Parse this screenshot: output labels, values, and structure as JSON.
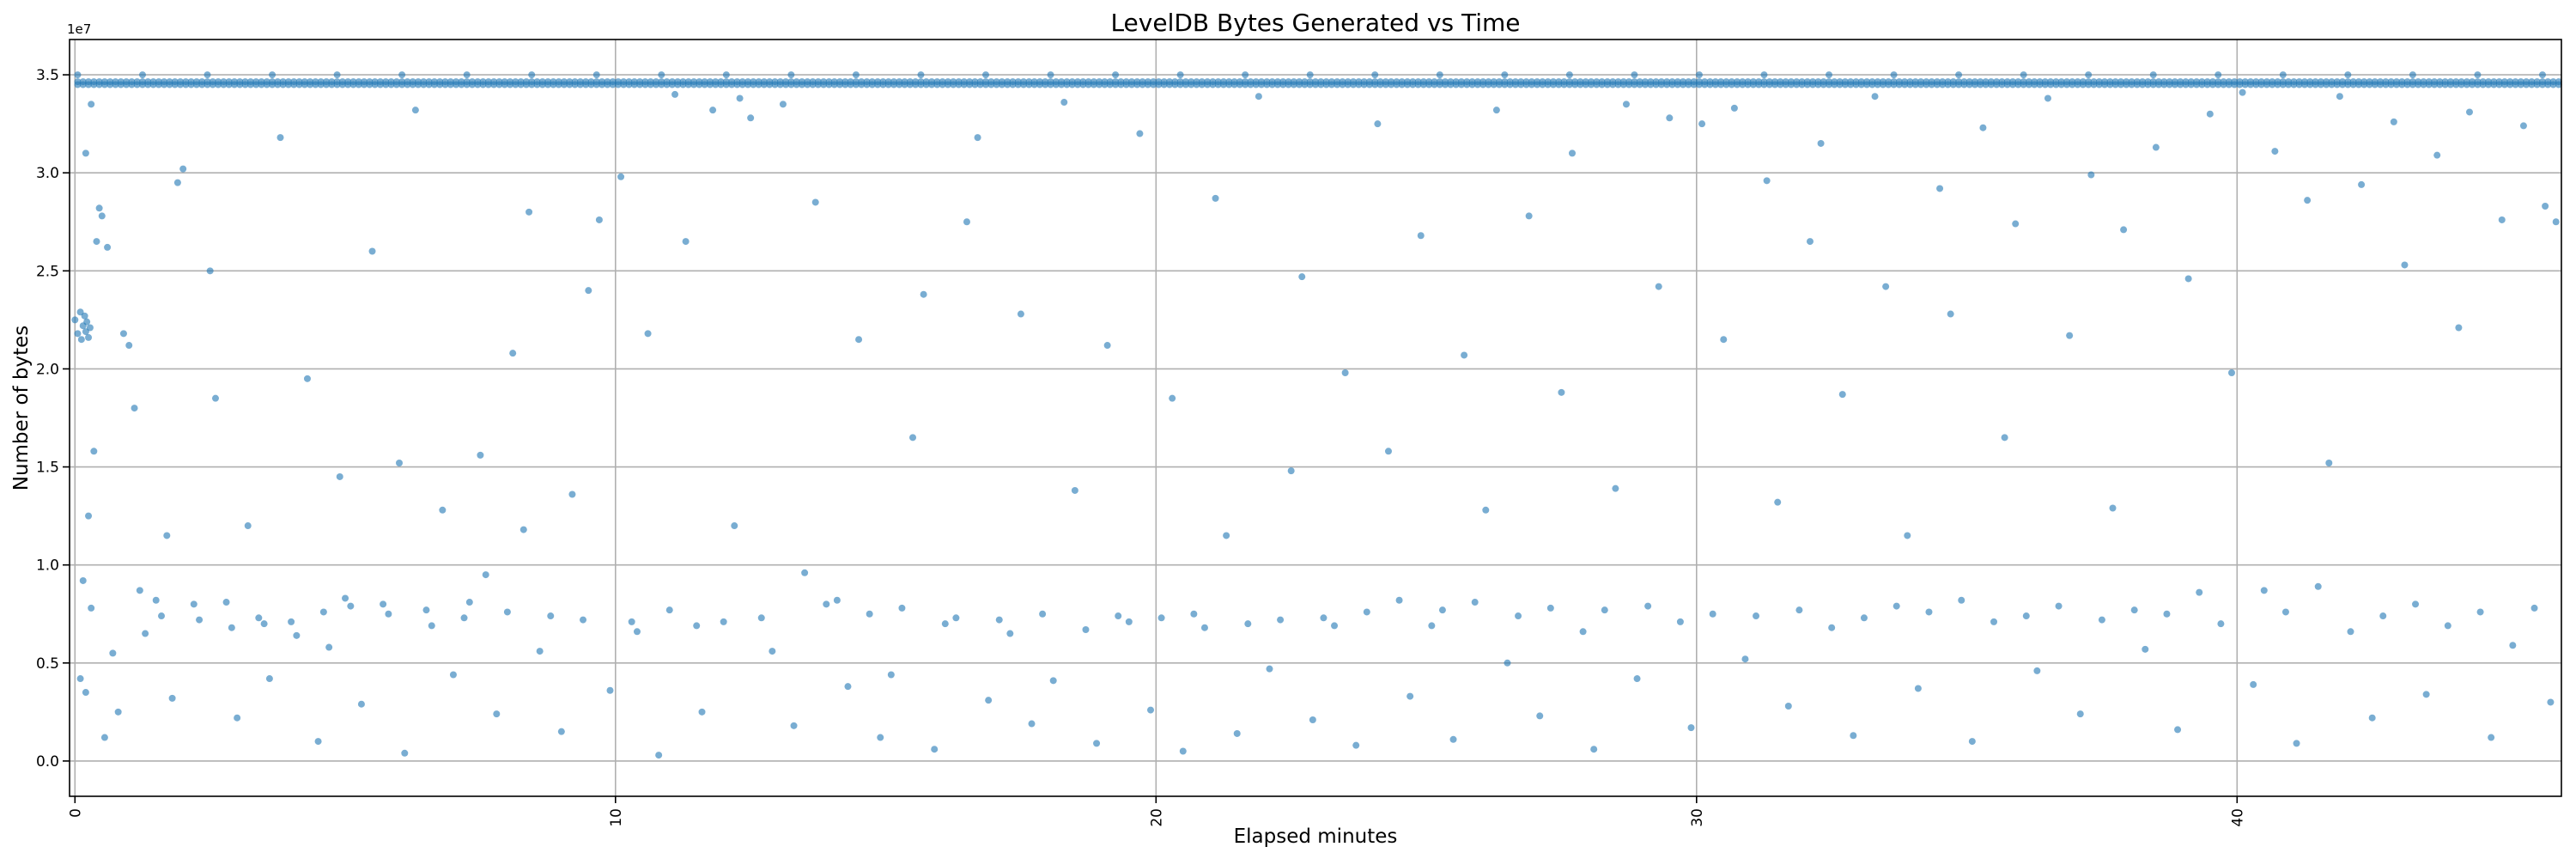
{
  "chart_data": {
    "type": "scatter",
    "title": "LevelDB Bytes Generated vs Time",
    "xlabel": "Elapsed minutes",
    "ylabel": "Number of bytes",
    "y_offset_label": "1e7",
    "xlim": [
      -0.1,
      46.0
    ],
    "ylim": [
      -1800000,
      36800000
    ],
    "x_ticks": [
      0,
      10,
      20,
      30,
      40
    ],
    "x_tick_labels": [
      "0",
      "10",
      "20",
      "30",
      "40"
    ],
    "y_ticks": [
      0,
      5000000,
      10000000,
      15000000,
      20000000,
      25000000,
      30000000,
      35000000
    ],
    "y_tick_labels": [
      "0.0",
      "0.5",
      "1.0",
      "1.5",
      "2.0",
      "2.5",
      "3.0",
      "3.5"
    ],
    "x_tick_rotation": "vertical",
    "grid": true,
    "marker_color": "#1f77b4",
    "marker_alpha": 0.6,
    "series": [
      {
        "points": [
          [
            0.0,
            22500000
          ],
          [
            0.05,
            21800000
          ],
          [
            0.1,
            22900000
          ],
          [
            0.12,
            21500000
          ],
          [
            0.15,
            22200000
          ],
          [
            0.18,
            22700000
          ],
          [
            0.2,
            21900000
          ],
          [
            0.22,
            22400000
          ],
          [
            0.25,
            21600000
          ],
          [
            0.28,
            22100000
          ],
          [
            0.1,
            4200000
          ],
          [
            0.2,
            3500000
          ],
          [
            0.15,
            9200000
          ],
          [
            0.3,
            7800000
          ],
          [
            0.25,
            12500000
          ],
          [
            0.35,
            15800000
          ],
          [
            0.4,
            26500000
          ],
          [
            0.5,
            27800000
          ],
          [
            0.6,
            26200000
          ],
          [
            0.45,
            28200000
          ],
          [
            0.2,
            31000000
          ],
          [
            0.3,
            33500000
          ],
          [
            0.55,
            1200000
          ],
          [
            0.7,
            5500000
          ],
          [
            0.8,
            2500000
          ],
          [
            0.9,
            21800000
          ],
          [
            1.0,
            21200000
          ],
          [
            1.1,
            18000000
          ],
          [
            1.2,
            8700000
          ],
          [
            1.3,
            6500000
          ],
          [
            1.5,
            8200000
          ],
          [
            1.6,
            7400000
          ],
          [
            1.7,
            11500000
          ],
          [
            1.8,
            3200000
          ],
          [
            1.9,
            29500000
          ],
          [
            2.0,
            30200000
          ],
          [
            2.2,
            8000000
          ],
          [
            2.3,
            7200000
          ],
          [
            2.5,
            25000000
          ],
          [
            2.6,
            18500000
          ],
          [
            2.8,
            8100000
          ],
          [
            2.9,
            6800000
          ],
          [
            3.0,
            2200000
          ],
          [
            3.2,
            12000000
          ],
          [
            3.4,
            7300000
          ],
          [
            3.5,
            7000000
          ],
          [
            3.6,
            4200000
          ],
          [
            3.8,
            31800000
          ],
          [
            4.0,
            7100000
          ],
          [
            4.1,
            6400000
          ],
          [
            4.3,
            19500000
          ],
          [
            4.5,
            1000000
          ],
          [
            4.6,
            7600000
          ],
          [
            4.7,
            5800000
          ],
          [
            4.9,
            14500000
          ],
          [
            5.0,
            8300000
          ],
          [
            5.1,
            7900000
          ],
          [
            5.3,
            2900000
          ],
          [
            5.5,
            26000000
          ],
          [
            5.7,
            8000000
          ],
          [
            5.8,
            7500000
          ],
          [
            6.0,
            15200000
          ],
          [
            6.1,
            400000
          ],
          [
            6.3,
            33200000
          ],
          [
            6.5,
            7700000
          ],
          [
            6.6,
            6900000
          ],
          [
            6.8,
            12800000
          ],
          [
            7.0,
            4400000
          ],
          [
            7.2,
            7300000
          ],
          [
            7.3,
            8100000
          ],
          [
            7.5,
            15600000
          ],
          [
            7.6,
            9500000
          ],
          [
            7.8,
            2400000
          ],
          [
            8.0,
            7600000
          ],
          [
            8.1,
            20800000
          ],
          [
            8.3,
            11800000
          ],
          [
            8.4,
            28000000
          ],
          [
            8.6,
            5600000
          ],
          [
            8.8,
            7400000
          ],
          [
            9.0,
            1500000
          ],
          [
            9.2,
            13600000
          ],
          [
            9.4,
            7200000
          ],
          [
            9.5,
            24000000
          ],
          [
            9.7,
            27600000
          ],
          [
            9.9,
            3600000
          ],
          [
            10.1,
            29800000
          ],
          [
            10.3,
            7100000
          ],
          [
            10.4,
            6600000
          ],
          [
            10.6,
            21800000
          ],
          [
            10.8,
            300000
          ],
          [
            11.0,
            7700000
          ],
          [
            11.1,
            34000000
          ],
          [
            11.3,
            26500000
          ],
          [
            11.5,
            6900000
          ],
          [
            11.6,
            2500000
          ],
          [
            11.8,
            33200000
          ],
          [
            12.0,
            7100000
          ],
          [
            12.2,
            12000000
          ],
          [
            12.3,
            33800000
          ],
          [
            12.5,
            32800000
          ],
          [
            12.7,
            7300000
          ],
          [
            12.9,
            5600000
          ],
          [
            13.1,
            33500000
          ],
          [
            13.3,
            1800000
          ],
          [
            13.5,
            9600000
          ],
          [
            13.7,
            28500000
          ],
          [
            13.9,
            8000000
          ],
          [
            14.1,
            8200000
          ],
          [
            14.3,
            3800000
          ],
          [
            14.5,
            21500000
          ],
          [
            14.7,
            7500000
          ],
          [
            14.9,
            1200000
          ],
          [
            15.1,
            4400000
          ],
          [
            15.3,
            7800000
          ],
          [
            15.5,
            16500000
          ],
          [
            15.7,
            23800000
          ],
          [
            15.9,
            600000
          ],
          [
            16.1,
            7000000
          ],
          [
            16.3,
            7300000
          ],
          [
            16.5,
            27500000
          ],
          [
            16.7,
            31800000
          ],
          [
            16.9,
            3100000
          ],
          [
            17.1,
            7200000
          ],
          [
            17.3,
            6500000
          ],
          [
            17.5,
            22800000
          ],
          [
            17.7,
            1900000
          ],
          [
            17.9,
            7500000
          ],
          [
            18.1,
            4100000
          ],
          [
            18.3,
            33600000
          ],
          [
            18.5,
            13800000
          ],
          [
            18.7,
            6700000
          ],
          [
            18.9,
            900000
          ],
          [
            19.1,
            21200000
          ],
          [
            19.3,
            7400000
          ],
          [
            19.5,
            7100000
          ],
          [
            19.7,
            32000000
          ],
          [
            19.9,
            2600000
          ],
          [
            20.1,
            7300000
          ],
          [
            20.3,
            18500000
          ],
          [
            20.5,
            500000
          ],
          [
            20.7,
            7500000
          ],
          [
            20.9,
            6800000
          ],
          [
            21.1,
            28700000
          ],
          [
            21.3,
            11500000
          ],
          [
            21.5,
            1400000
          ],
          [
            21.7,
            7000000
          ],
          [
            21.9,
            33900000
          ],
          [
            22.1,
            4700000
          ],
          [
            22.3,
            7200000
          ],
          [
            22.5,
            14800000
          ],
          [
            22.7,
            24700000
          ],
          [
            22.9,
            2100000
          ],
          [
            23.1,
            7300000
          ],
          [
            23.3,
            6900000
          ],
          [
            23.5,
            19800000
          ],
          [
            23.7,
            800000
          ],
          [
            23.9,
            7600000
          ],
          [
            24.1,
            32500000
          ],
          [
            24.3,
            15800000
          ],
          [
            24.5,
            8200000
          ],
          [
            24.7,
            3300000
          ],
          [
            24.9,
            26800000
          ],
          [
            25.1,
            6900000
          ],
          [
            25.3,
            7700000
          ],
          [
            25.5,
            1100000
          ],
          [
            25.7,
            20700000
          ],
          [
            25.9,
            8100000
          ],
          [
            26.1,
            12800000
          ],
          [
            26.3,
            33200000
          ],
          [
            26.5,
            5000000
          ],
          [
            26.7,
            7400000
          ],
          [
            26.9,
            27800000
          ],
          [
            27.1,
            2300000
          ],
          [
            27.3,
            7800000
          ],
          [
            27.5,
            18800000
          ],
          [
            27.7,
            31000000
          ],
          [
            27.9,
            6600000
          ],
          [
            28.1,
            600000
          ],
          [
            28.3,
            7700000
          ],
          [
            28.5,
            13900000
          ],
          [
            28.7,
            33500000
          ],
          [
            28.9,
            4200000
          ],
          [
            29.1,
            7900000
          ],
          [
            29.3,
            24200000
          ],
          [
            29.5,
            32800000
          ],
          [
            29.7,
            7100000
          ],
          [
            29.9,
            1700000
          ],
          [
            30.1,
            32500000
          ],
          [
            30.3,
            7500000
          ],
          [
            30.5,
            21500000
          ],
          [
            30.7,
            33300000
          ],
          [
            30.9,
            5200000
          ],
          [
            31.1,
            7400000
          ],
          [
            31.3,
            29600000
          ],
          [
            31.5,
            13200000
          ],
          [
            31.7,
            2800000
          ],
          [
            31.9,
            7700000
          ],
          [
            32.1,
            26500000
          ],
          [
            32.3,
            31500000
          ],
          [
            32.5,
            6800000
          ],
          [
            32.7,
            18700000
          ],
          [
            32.9,
            1300000
          ],
          [
            33.1,
            7300000
          ],
          [
            33.3,
            33900000
          ],
          [
            33.5,
            24200000
          ],
          [
            33.7,
            7900000
          ],
          [
            33.9,
            11500000
          ],
          [
            34.1,
            3700000
          ],
          [
            34.3,
            7600000
          ],
          [
            34.5,
            29200000
          ],
          [
            34.7,
            22800000
          ],
          [
            34.9,
            8200000
          ],
          [
            35.1,
            1000000
          ],
          [
            35.3,
            32300000
          ],
          [
            35.5,
            7100000
          ],
          [
            35.7,
            16500000
          ],
          [
            35.9,
            27400000
          ],
          [
            36.1,
            7400000
          ],
          [
            36.3,
            4600000
          ],
          [
            36.5,
            33800000
          ],
          [
            36.7,
            7900000
          ],
          [
            36.9,
            21700000
          ],
          [
            37.1,
            2400000
          ],
          [
            37.3,
            29900000
          ],
          [
            37.5,
            7200000
          ],
          [
            37.7,
            12900000
          ],
          [
            37.9,
            27100000
          ],
          [
            38.1,
            7700000
          ],
          [
            38.3,
            5700000
          ],
          [
            38.5,
            31300000
          ],
          [
            38.7,
            7500000
          ],
          [
            38.9,
            1600000
          ],
          [
            39.1,
            24600000
          ],
          [
            39.3,
            8600000
          ],
          [
            39.5,
            33000000
          ],
          [
            39.7,
            7000000
          ],
          [
            39.9,
            19800000
          ],
          [
            40.1,
            34100000
          ],
          [
            40.3,
            3900000
          ],
          [
            40.5,
            8700000
          ],
          [
            40.7,
            31100000
          ],
          [
            40.9,
            7600000
          ],
          [
            41.1,
            900000
          ],
          [
            41.3,
            28600000
          ],
          [
            41.5,
            8900000
          ],
          [
            41.7,
            15200000
          ],
          [
            41.9,
            33900000
          ],
          [
            42.1,
            6600000
          ],
          [
            42.3,
            29400000
          ],
          [
            42.5,
            2200000
          ],
          [
            42.7,
            7400000
          ],
          [
            42.9,
            32600000
          ],
          [
            43.1,
            25300000
          ],
          [
            43.3,
            8000000
          ],
          [
            43.5,
            3400000
          ],
          [
            43.7,
            30900000
          ],
          [
            43.9,
            6900000
          ],
          [
            44.1,
            22100000
          ],
          [
            44.3,
            33100000
          ],
          [
            44.5,
            7600000
          ],
          [
            44.7,
            1200000
          ],
          [
            44.9,
            27600000
          ],
          [
            45.1,
            5900000
          ],
          [
            45.3,
            32400000
          ],
          [
            45.5,
            7800000
          ],
          [
            45.7,
            28300000
          ],
          [
            45.8,
            3000000
          ],
          [
            45.9,
            27500000
          ]
        ]
      }
    ],
    "band": {
      "y_top_values": [
        35000000,
        34900000,
        34800000
      ],
      "y_base": 34500000,
      "note_free": ""
    }
  }
}
